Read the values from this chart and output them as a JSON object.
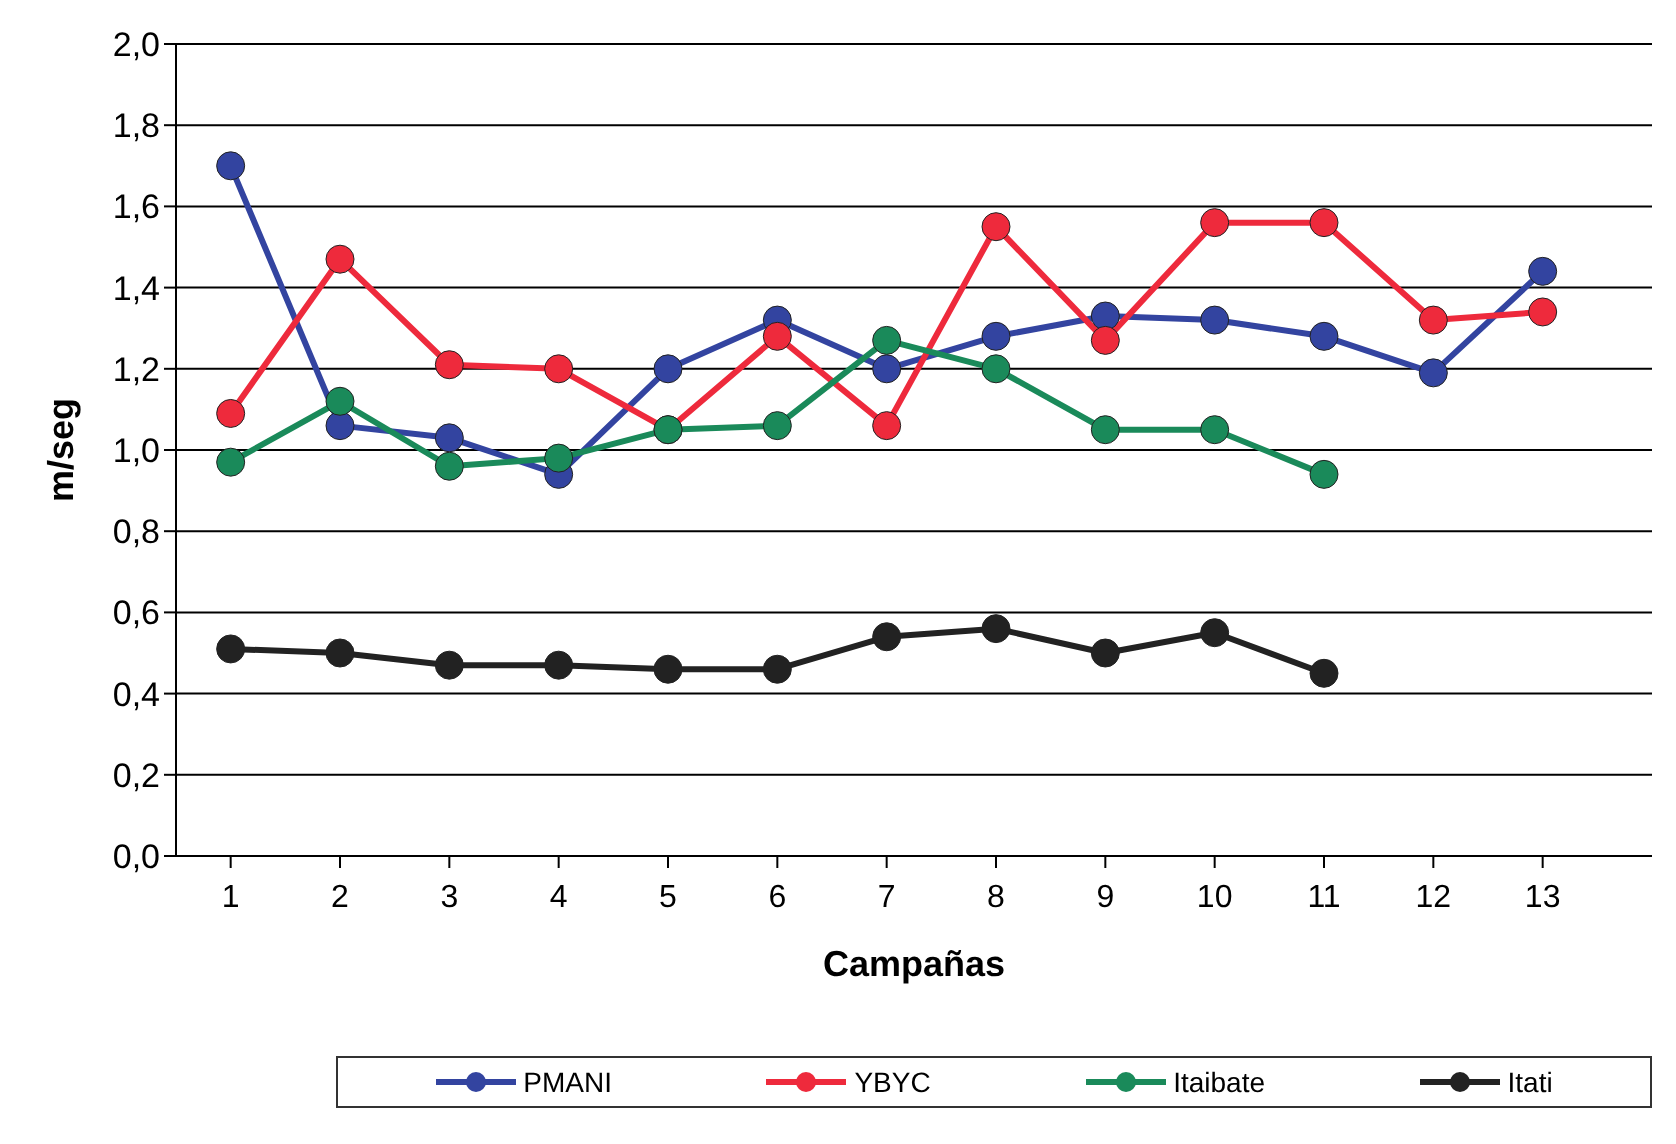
{
  "chart_data": {
    "type": "line",
    "xlabel": "Campañas",
    "ylabel": "m/seg",
    "x": [
      1,
      2,
      3,
      4,
      5,
      6,
      7,
      8,
      9,
      10,
      11,
      12,
      13
    ],
    "series": [
      {
        "name": "PMANI",
        "color": "#3344a0",
        "values": [
          1.7,
          1.06,
          1.03,
          0.94,
          1.2,
          1.32,
          1.2,
          1.28,
          1.33,
          1.32,
          1.28,
          1.19,
          1.44
        ]
      },
      {
        "name": "YBYC",
        "color": "#ee2a3c",
        "values": [
          1.09,
          1.47,
          1.21,
          1.2,
          1.05,
          1.28,
          1.06,
          1.55,
          1.27,
          1.56,
          1.56,
          1.32,
          1.34
        ]
      },
      {
        "name": "Itaibate",
        "color": "#1a8a5a",
        "values": [
          0.97,
          1.12,
          0.96,
          0.98,
          1.05,
          1.06,
          1.27,
          1.2,
          1.05,
          1.05,
          0.94,
          null,
          null
        ]
      },
      {
        "name": "Itati",
        "color": "#222222",
        "values": [
          0.51,
          0.5,
          0.47,
          0.47,
          0.46,
          0.46,
          0.54,
          0.56,
          0.5,
          0.55,
          0.45,
          null,
          null
        ]
      }
    ],
    "xlim": [
      0.5,
      14
    ],
    "xticks": [
      1,
      2,
      3,
      4,
      5,
      6,
      7,
      8,
      9,
      10,
      11,
      12,
      13
    ],
    "ylim": [
      0,
      2
    ],
    "yticks": [
      {
        "value": 0,
        "label": "0,0"
      },
      {
        "value": 0.2,
        "label": "0,2"
      },
      {
        "value": 0.4,
        "label": "0,4"
      },
      {
        "value": 0.6,
        "label": "0,6"
      },
      {
        "value": 0.8,
        "label": "0,8"
      },
      {
        "value": 1.0,
        "label": "1,0"
      },
      {
        "value": 1.2,
        "label": "1,2"
      },
      {
        "value": 1.4,
        "label": "1,4"
      },
      {
        "value": 1.6,
        "label": "1,6"
      },
      {
        "value": 1.8,
        "label": "1,8"
      },
      {
        "value": 2.0,
        "label": "2,0"
      }
    ],
    "grid": "y",
    "legend": "bottom",
    "marker": "circle",
    "line_style": "solid"
  }
}
